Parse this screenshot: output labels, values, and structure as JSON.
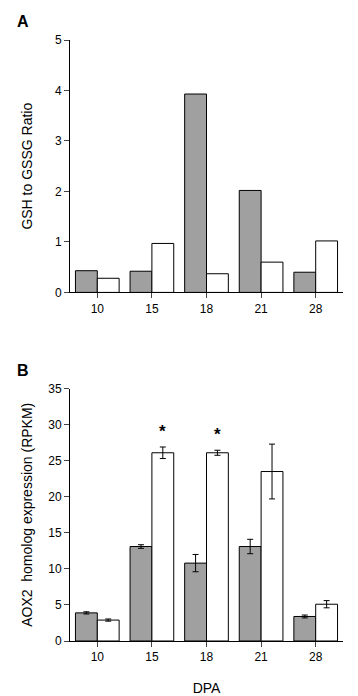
{
  "chart_data": [
    {
      "type": "bar",
      "title": "A",
      "ylabel": "GSH to GSSG Ratio",
      "categories": [
        "10",
        "15",
        "18",
        "21",
        "28"
      ],
      "series": [
        {
          "color": "#a0a0a0",
          "values": [
            0.43,
            0.42,
            3.93,
            2.02,
            0.4
          ]
        },
        {
          "color": "#ffffff",
          "values": [
            0.28,
            0.97,
            0.37,
            0.6,
            1.02
          ]
        }
      ],
      "ylim": [
        0,
        5
      ],
      "yticks": [
        0,
        1,
        2,
        3,
        4,
        5
      ],
      "grid": false
    },
    {
      "type": "bar",
      "title": "B",
      "ylabel": "AOX2  homolog expression (RPKM)",
      "xlabel": "DPA",
      "categories": [
        "10",
        "15",
        "18",
        "21",
        "28"
      ],
      "series": [
        {
          "color": "#a0a0a0",
          "values": [
            3.9,
            13.1,
            10.8,
            13.1,
            3.4
          ],
          "errors": [
            0.15,
            0.25,
            1.2,
            1.0,
            0.2
          ]
        },
        {
          "color": "#ffffff",
          "values": [
            2.9,
            26.1,
            26.1,
            23.5,
            5.1
          ],
          "errors": [
            0.15,
            0.8,
            0.35,
            3.8,
            0.5
          ]
        }
      ],
      "ylim": [
        0,
        35
      ],
      "yticks": [
        0,
        5,
        10,
        15,
        20,
        25,
        30,
        35
      ],
      "grid": false,
      "annotations": [
        {
          "text": "*",
          "category": "15"
        },
        {
          "text": "*",
          "category": "18"
        }
      ]
    }
  ]
}
